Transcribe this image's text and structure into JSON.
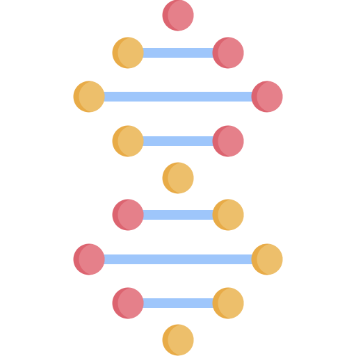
{
  "icon": {
    "name": "dna-helix-icon",
    "colors": {
      "rung": "#9ec6fb",
      "red_main": "#e5808a",
      "red_shade": "#dc6470",
      "orange_main": "#edbf6b",
      "orange_shade": "#e8ab47"
    },
    "rungs": [
      {
        "left": "none",
        "right": "red"
      },
      {
        "left": "orange",
        "right": "red"
      },
      {
        "left": "orange",
        "right": "red"
      },
      {
        "left": "orange",
        "right": "red"
      },
      {
        "left": "none",
        "right": "orange"
      },
      {
        "left": "red",
        "right": "orange"
      },
      {
        "left": "red",
        "right": "orange"
      },
      {
        "left": "red",
        "right": "orange"
      },
      {
        "left": "none",
        "right": "orange"
      }
    ]
  }
}
